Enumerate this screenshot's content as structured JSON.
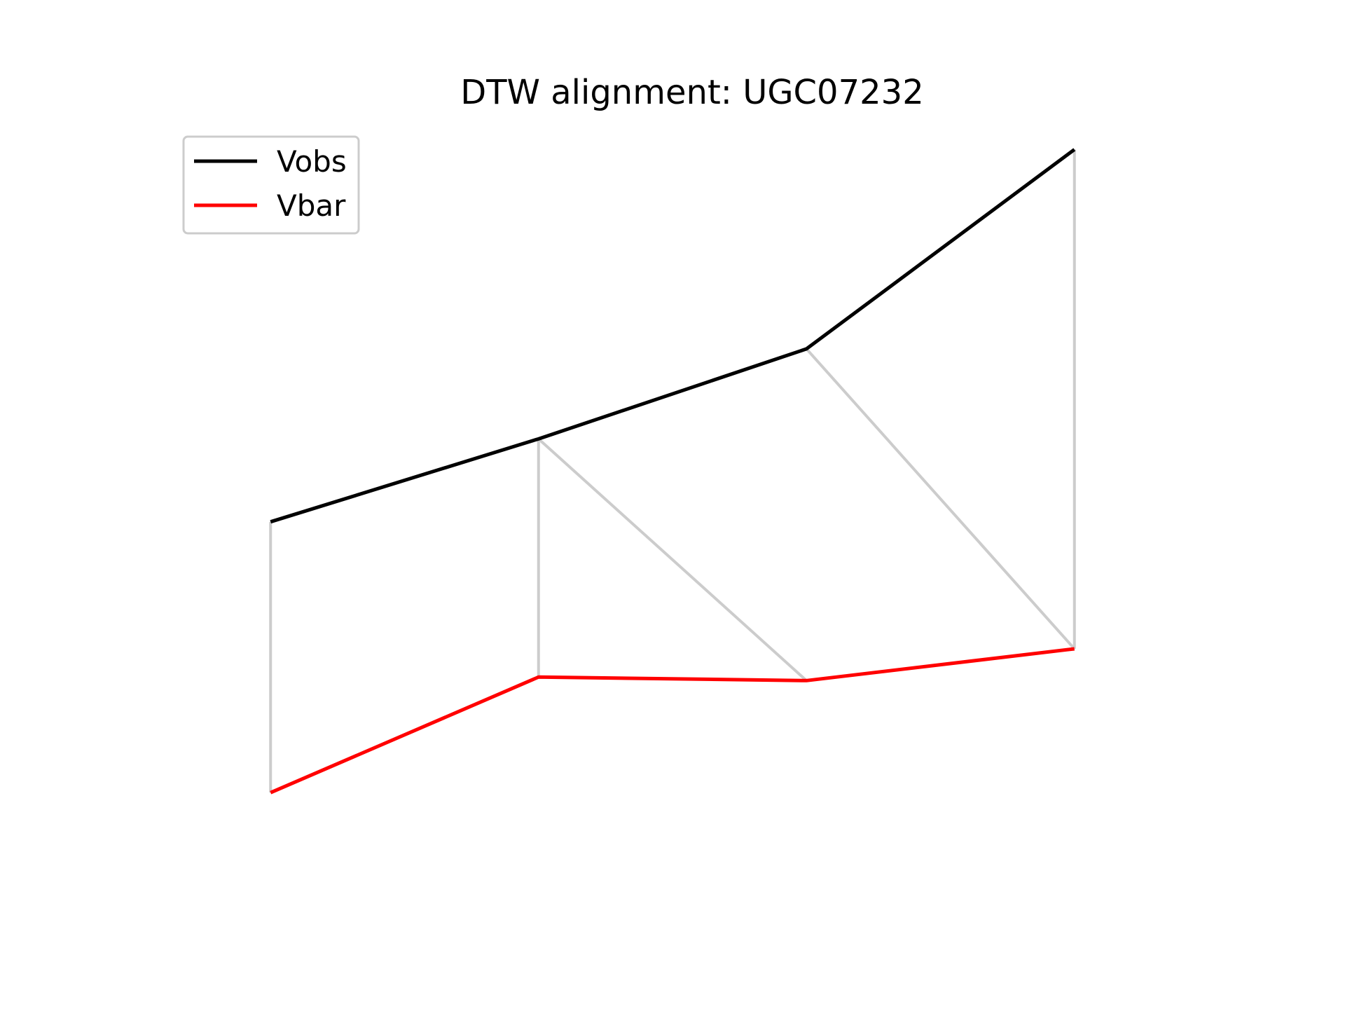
{
  "chart_data": {
    "type": "line",
    "title": "DTW alignment: UGC07232",
    "xlabel": "",
    "ylabel": "",
    "axes_visible": false,
    "grid": false,
    "legend_position": "upper-left",
    "x": [
      0,
      1,
      2,
      3
    ],
    "xlim": [
      -0.5,
      3.5
    ],
    "ylim": [
      0,
      100
    ],
    "series": [
      {
        "name": "Vobs",
        "color": "#000000",
        "values": [
          48.0,
          57.4,
          67.6,
          90.2
        ]
      },
      {
        "name": "Vbar",
        "color": "#ff0000",
        "values": [
          17.3,
          30.4,
          30.0,
          33.6
        ]
      }
    ],
    "alignment": {
      "color": "#cccccc",
      "pairs": [
        [
          0,
          0
        ],
        [
          1,
          1
        ],
        [
          1,
          2
        ],
        [
          2,
          3
        ],
        [
          3,
          3
        ]
      ]
    }
  }
}
